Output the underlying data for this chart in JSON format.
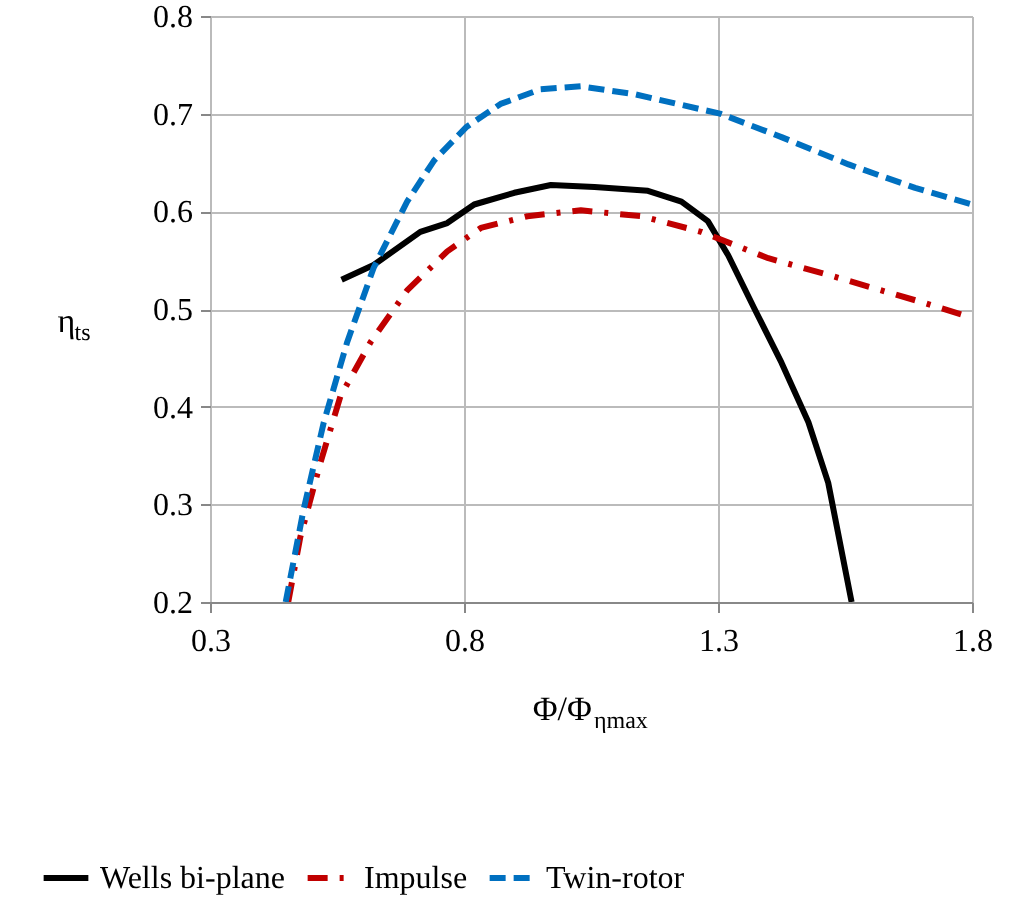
{
  "chart_data": {
    "type": "line",
    "xlabel": "Φ/Φ$_{ηmax}$",
    "ylabel": "η$_{ts}$",
    "xlim": [
      0.3,
      1.8
    ],
    "xticks": [
      0.3,
      0.8,
      1.3,
      1.8
    ],
    "ylim": [
      0.2,
      0.8
    ],
    "yticks": [
      0.2,
      0.3,
      0.4,
      0.5,
      0.6,
      0.7,
      0.8
    ],
    "grid": true,
    "legend": "bottom",
    "marker": "none",
    "series": [
      {
        "name": "Wells bi-plane",
        "color": "#000000",
        "line_style": "solid",
        "x": [
          0.559,
          0.622,
          0.714,
          0.767,
          0.82,
          0.899,
          0.971,
          1.057,
          1.162,
          1.228,
          1.28,
          1.32,
          1.372,
          1.425,
          1.478,
          1.517,
          1.563
        ],
        "values": [
          0.53,
          0.545,
          0.579,
          0.588,
          0.607,
          0.619,
          0.627,
          0.625,
          0.621,
          0.61,
          0.59,
          0.555,
          0.5,
          0.445,
          0.384,
          0.322,
          0.2
        ]
      },
      {
        "name": "Impulse",
        "color": "#c00000",
        "line_style": "dashdot",
        "x": [
          0.454,
          0.478,
          0.517,
          0.557,
          0.616,
          0.688,
          0.767,
          0.833,
          0.925,
          1.03,
          1.149,
          1.267,
          1.399,
          1.517,
          1.701,
          1.8
        ],
        "values": [
          0.2,
          0.267,
          0.342,
          0.411,
          0.466,
          0.519,
          0.559,
          0.583,
          0.595,
          0.601,
          0.595,
          0.579,
          0.552,
          0.535,
          0.507,
          0.491
        ]
      },
      {
        "name": "Twin-rotor",
        "color": "#0070c0",
        "line_style": "dashed",
        "x": [
          0.449,
          0.484,
          0.524,
          0.57,
          0.622,
          0.688,
          0.741,
          0.804,
          0.872,
          0.951,
          1.03,
          1.135,
          1.304,
          1.425,
          1.557,
          1.688,
          1.8
        ],
        "values": [
          0.2,
          0.294,
          0.384,
          0.466,
          0.542,
          0.61,
          0.652,
          0.686,
          0.71,
          0.725,
          0.728,
          0.72,
          0.7,
          0.676,
          0.648,
          0.624,
          0.607
        ]
      }
    ]
  }
}
